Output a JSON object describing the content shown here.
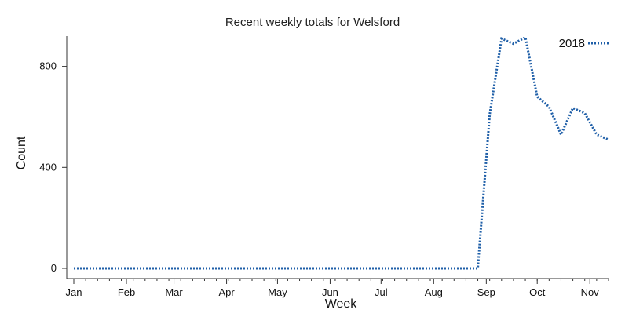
{
  "chart_data": {
    "type": "line",
    "title": "Recent weekly totals for Welsford",
    "xlabel": "Week",
    "ylabel": "Count",
    "ylim": [
      0,
      920
    ],
    "xlim": [
      "2018-01-01",
      "2018-11-12"
    ],
    "y_ticks": [
      0,
      400,
      800
    ],
    "month_ticks": [
      {
        "label": "Jan",
        "date": "2018-01-01"
      },
      {
        "label": "Feb",
        "date": "2018-02-01"
      },
      {
        "label": "Mar",
        "date": "2018-03-01"
      },
      {
        "label": "Apr",
        "date": "2018-04-01"
      },
      {
        "label": "May",
        "date": "2018-05-01"
      },
      {
        "label": "Jun",
        "date": "2018-06-01"
      },
      {
        "label": "Jul",
        "date": "2018-07-01"
      },
      {
        "label": "Aug",
        "date": "2018-08-01"
      },
      {
        "label": "Sep",
        "date": "2018-09-01"
      },
      {
        "label": "Oct",
        "date": "2018-10-01"
      },
      {
        "label": "Nov",
        "date": "2018-11-01"
      }
    ],
    "grid": false,
    "legend_position": "top-right",
    "series": [
      {
        "name": "2018",
        "color": "#1f5fa8",
        "style": "dotted",
        "x": [
          "2018-01-01",
          "2018-01-08",
          "2018-01-15",
          "2018-01-22",
          "2018-01-29",
          "2018-02-05",
          "2018-02-12",
          "2018-02-19",
          "2018-02-26",
          "2018-03-05",
          "2018-03-12",
          "2018-03-19",
          "2018-03-26",
          "2018-04-02",
          "2018-04-09",
          "2018-04-16",
          "2018-04-23",
          "2018-04-30",
          "2018-05-07",
          "2018-05-14",
          "2018-05-21",
          "2018-05-28",
          "2018-06-04",
          "2018-06-11",
          "2018-06-18",
          "2018-06-25",
          "2018-07-02",
          "2018-07-09",
          "2018-07-16",
          "2018-07-23",
          "2018-07-30",
          "2018-08-06",
          "2018-08-13",
          "2018-08-20",
          "2018-08-27",
          "2018-09-03",
          "2018-09-10",
          "2018-09-17",
          "2018-09-24",
          "2018-10-01",
          "2018-10-08",
          "2018-10-15",
          "2018-10-22",
          "2018-10-29",
          "2018-11-05",
          "2018-11-12"
        ],
        "y": [
          0,
          0,
          0,
          0,
          0,
          0,
          0,
          0,
          0,
          0,
          0,
          0,
          0,
          0,
          0,
          0,
          0,
          0,
          0,
          0,
          0,
          0,
          0,
          0,
          0,
          0,
          0,
          0,
          0,
          0,
          0,
          0,
          0,
          0,
          0,
          610,
          910,
          890,
          915,
          680,
          640,
          530,
          635,
          615,
          530,
          510
        ]
      }
    ]
  }
}
